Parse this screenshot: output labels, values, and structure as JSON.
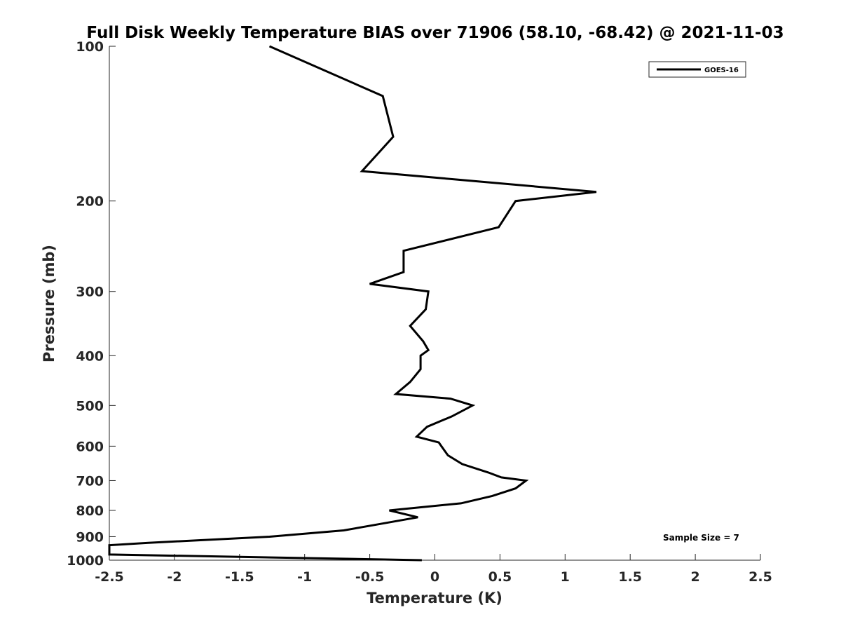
{
  "chart_data": {
    "type": "line",
    "title": "Full Disk Weekly Temperature BIAS over 71906 (58.10, -68.42) @ 2021-11-03",
    "xlabel": "Temperature (K)",
    "ylabel": "Pressure (mb)",
    "xlim": [
      -2.5,
      2.5
    ],
    "ylim": [
      1000,
      100
    ],
    "y_scale": "log",
    "y_reversed": true,
    "grid": false,
    "x_ticks": [
      -2.5,
      -2,
      -1.5,
      -1,
      -0.5,
      0,
      0.5,
      1,
      1.5,
      2,
      2.5
    ],
    "x_tick_labels": [
      "-2.5",
      "-2",
      "-1.5",
      "-1",
      "-0.5",
      "0",
      "0.5",
      "1",
      "1.5",
      "2",
      "2.5"
    ],
    "y_ticks": [
      100,
      200,
      300,
      400,
      500,
      600,
      700,
      800,
      900,
      1000
    ],
    "y_tick_labels": [
      "100",
      "200",
      "300",
      "400",
      "500",
      "600",
      "700",
      "800",
      "900",
      "1000"
    ],
    "legend": {
      "placement": "top-right",
      "entries": [
        "GOES-16"
      ]
    },
    "annotation": "Sample Size = 7",
    "series": [
      {
        "name": "GOES-16",
        "color": "#000000",
        "points": [
          {
            "x": -1.27,
            "p": 100
          },
          {
            "x": -0.4,
            "p": 125
          },
          {
            "x": -0.32,
            "p": 150
          },
          {
            "x": -0.56,
            "p": 175
          },
          {
            "x": 1.24,
            "p": 192
          },
          {
            "x": 0.62,
            "p": 200
          },
          {
            "x": 0.49,
            "p": 225
          },
          {
            "x": -0.24,
            "p": 250
          },
          {
            "x": -0.24,
            "p": 275
          },
          {
            "x": -0.5,
            "p": 290
          },
          {
            "x": -0.05,
            "p": 300
          },
          {
            "x": -0.07,
            "p": 325
          },
          {
            "x": -0.19,
            "p": 350
          },
          {
            "x": -0.09,
            "p": 375
          },
          {
            "x": -0.05,
            "p": 390
          },
          {
            "x": -0.11,
            "p": 400
          },
          {
            "x": -0.11,
            "p": 425
          },
          {
            "x": -0.19,
            "p": 450
          },
          {
            "x": -0.3,
            "p": 475
          },
          {
            "x": 0.12,
            "p": 485
          },
          {
            "x": 0.29,
            "p": 500
          },
          {
            "x": 0.13,
            "p": 525
          },
          {
            "x": -0.06,
            "p": 550
          },
          {
            "x": -0.14,
            "p": 575
          },
          {
            "x": 0.03,
            "p": 590
          },
          {
            "x": 0.05,
            "p": 600
          },
          {
            "x": 0.1,
            "p": 625
          },
          {
            "x": 0.21,
            "p": 650
          },
          {
            "x": 0.41,
            "p": 675
          },
          {
            "x": 0.51,
            "p": 690
          },
          {
            "x": 0.7,
            "p": 700
          },
          {
            "x": 0.62,
            "p": 725
          },
          {
            "x": 0.44,
            "p": 750
          },
          {
            "x": 0.2,
            "p": 775
          },
          {
            "x": -0.35,
            "p": 800
          },
          {
            "x": -0.13,
            "p": 825
          },
          {
            "x": -0.42,
            "p": 850
          },
          {
            "x": -0.7,
            "p": 875
          },
          {
            "x": -1.27,
            "p": 900
          },
          {
            "x": -2.2,
            "p": 925
          },
          {
            "x": -2.5,
            "p": 935
          },
          {
            "x": -2.5,
            "p": 975
          },
          {
            "x": -0.1,
            "p": 1000
          }
        ]
      }
    ]
  }
}
